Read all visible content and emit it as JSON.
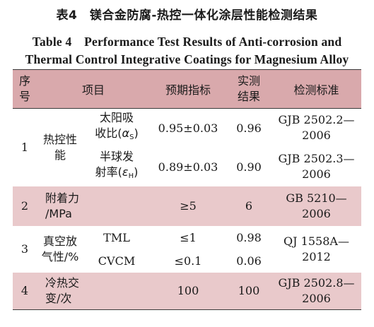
{
  "caption": {
    "cn": "表4　镁合金防腐-热控一体化涂层性能检测结果",
    "en_line1": "Table 4　Performance Test Results of Anti-corrosion and",
    "en_line2": "Thermal Control Integrative Coatings for Magnesium Alloy"
  },
  "header": {
    "no_1": "序",
    "no_2": "号",
    "item": "项目",
    "target": "预期指标",
    "result_1": "实测",
    "result_2": "结果",
    "standard": "检测标准"
  },
  "rows": [
    {
      "no": "1",
      "item_1": "热控性",
      "item_2": "能",
      "sub": [
        {
          "name_1": "太阳吸",
          "name_2a": "收比(",
          "symbol": "α",
          "symbol_sub": "S",
          "name_2b": ")",
          "target": "0.95±0.03",
          "result": "0.96",
          "std_1": "GJB 2502.2—",
          "std_2": "2006"
        },
        {
          "name_1": "半球发",
          "name_2a": "射率(",
          "symbol": "ε",
          "symbol_sub": "H",
          "name_2b": ")",
          "target": "0.89±0.03",
          "result": "0.90",
          "std_1": "GJB 2502.3—",
          "std_2": "2006"
        }
      ]
    },
    {
      "no": "2",
      "item_1": "附着力",
      "item_2": "/MPa",
      "target": "≥5",
      "result": "6",
      "std_1": "GB 5210—",
      "std_2": "2006"
    },
    {
      "no": "3",
      "item_1": "真空放",
      "item_2": "气性/%",
      "sub": [
        {
          "name": "TML",
          "target": "≤1",
          "result": "0.98"
        },
        {
          "name": "CVCM",
          "target": "≤0.1",
          "result": "0.06"
        }
      ],
      "std_1": "QJ 1558A—",
      "std_2": "2012"
    },
    {
      "no": "4",
      "item_1": "冷热交",
      "item_2": "变/次",
      "target": "100",
      "result": "100",
      "std_1": "GJB 2502.8—",
      "std_2": "2006"
    }
  ]
}
